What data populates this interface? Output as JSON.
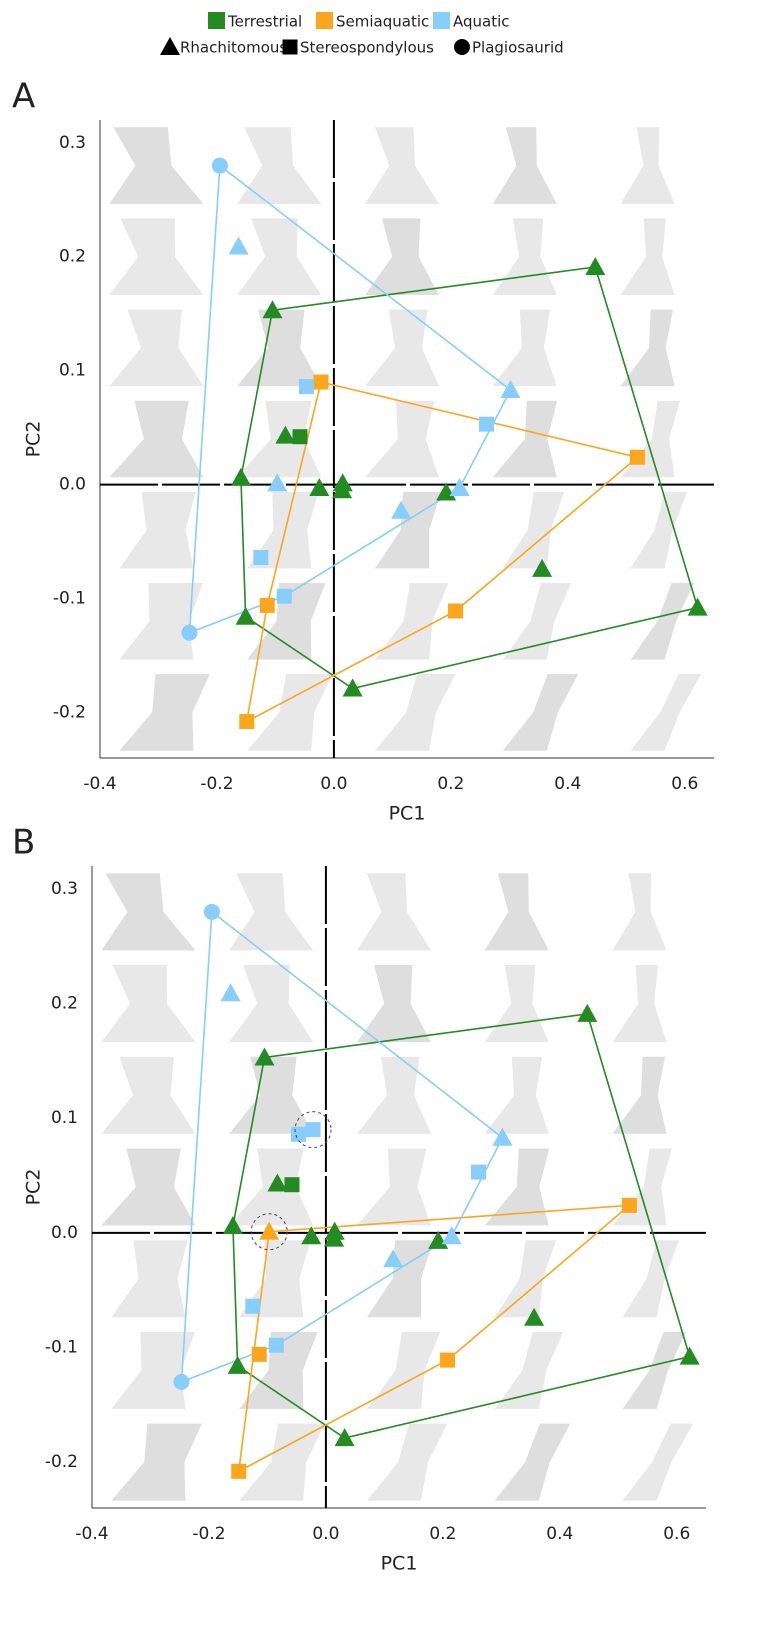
{
  "chart_data": [
    {
      "type": "scatter",
      "panel": "A",
      "xlabel": "PC1",
      "ylabel": "PC2",
      "xlim": [
        -0.4,
        0.65
      ],
      "ylim": [
        -0.24,
        0.32
      ],
      "xticks": [
        -0.4,
        -0.2,
        {
          "value": 0,
          "label": "0.0"
        },
        0.2,
        0.4,
        0.6
      ],
      "yticks": [
        -0.2,
        -0.1,
        {
          "value": 0,
          "label": "0.0"
        },
        0.1,
        0.2,
        0.3
      ],
      "zero_lines": true,
      "marker_legend": [
        {
          "name": "Rhachitomous",
          "marker": "triangle"
        },
        {
          "name": "Stereospondylous",
          "marker": "square"
        },
        {
          "name": "Plagiosaurid",
          "marker": "circle"
        }
      ],
      "series": [
        {
          "name": "Terrestrial",
          "color": "#238b22",
          "x": [
            0.447,
            -0.105,
            0.622,
            0.032,
            -0.151,
            -0.159,
            -0.083,
            -0.058,
            -0.025,
            0.015,
            0.014,
            0.192,
            0.356
          ],
          "y": [
            0.191,
            0.153,
            -0.108,
            -0.179,
            -0.116,
            0.006,
            0.043,
            0.042,
            -0.003,
            0.001,
            -0.005,
            -0.007,
            -0.074
          ],
          "marker": [
            "triangle",
            "triangle",
            "triangle",
            "triangle",
            "triangle",
            "triangle",
            "triangle",
            "square",
            "triangle",
            "triangle",
            "triangle",
            "triangle",
            "triangle"
          ]
        },
        {
          "name": "Semiaquatic",
          "color": "#fba61c",
          "x": [
            -0.022,
            0.519,
            0.208,
            -0.149,
            -0.114
          ],
          "y": [
            0.09,
            0.024,
            -0.111,
            -0.208,
            -0.106
          ],
          "marker": [
            "square",
            "square",
            "square",
            "square",
            "square"
          ]
        },
        {
          "name": "Aquatic",
          "color": "#87cefa",
          "x": [
            -0.195,
            -0.247,
            -0.163,
            0.302,
            -0.047,
            0.261,
            0.215,
            -0.097,
            0.115,
            -0.125,
            -0.085
          ],
          "y": [
            0.28,
            -0.13,
            0.209,
            0.083,
            0.086,
            0.053,
            -0.003,
            0.001,
            -0.023,
            -0.064,
            -0.098
          ],
          "marker": [
            "circle",
            "circle",
            "triangle",
            "triangle",
            "square",
            "square",
            "triangle",
            "triangle",
            "triangle",
            "square",
            "square"
          ]
        }
      ]
    },
    {
      "type": "scatter",
      "panel": "B",
      "xlabel": "PC1",
      "ylabel": "PC2",
      "xlim": [
        -0.4,
        0.65
      ],
      "ylim": [
        -0.24,
        0.32
      ],
      "xticks": [
        -0.4,
        -0.2,
        {
          "value": 0,
          "label": "0.0"
        },
        0.2,
        0.4,
        0.6
      ],
      "yticks": [
        -0.2,
        -0.1,
        {
          "value": 0,
          "label": "0.0"
        },
        0.1,
        0.2,
        0.3
      ],
      "zero_lines": true,
      "series": [
        {
          "color": "#238b22",
          "x": [
            0.447,
            -0.105,
            0.622,
            0.032,
            -0.151,
            -0.159,
            -0.083,
            -0.058,
            -0.025,
            0.015,
            0.014,
            0.192,
            0.356
          ],
          "y": [
            0.191,
            0.153,
            -0.108,
            -0.179,
            -0.116,
            0.006,
            0.043,
            0.042,
            -0.003,
            0.001,
            -0.005,
            -0.007,
            -0.074
          ],
          "marker": [
            "triangle",
            "triangle",
            "triangle",
            "triangle",
            "triangle",
            "triangle",
            "triangle",
            "square",
            "triangle",
            "triangle",
            "triangle",
            "triangle",
            "triangle"
          ]
        },
        {
          "color": "#fba61c",
          "x": [
            0.519,
            0.208,
            -0.149,
            -0.114,
            -0.097
          ],
          "y": [
            0.024,
            -0.111,
            -0.208,
            -0.106,
            0.001
          ],
          "marker": [
            "square",
            "square",
            "square",
            "square",
            "triangle"
          ],
          "circled": [
            false,
            false,
            false,
            false,
            true
          ]
        },
        {
          "color": "#87cefa",
          "x": [
            -0.195,
            -0.247,
            -0.163,
            0.302,
            -0.047,
            -0.022,
            0.261,
            0.215,
            0.115,
            -0.125,
            -0.085
          ],
          "y": [
            0.28,
            -0.13,
            0.209,
            0.083,
            0.086,
            0.09,
            0.053,
            -0.003,
            -0.023,
            -0.064,
            -0.098
          ],
          "marker": [
            "circle",
            "circle",
            "triangle",
            "triangle",
            "square",
            "square",
            "square",
            "triangle",
            "triangle",
            "square",
            "square"
          ],
          "circled": [
            false,
            false,
            false,
            false,
            false,
            true,
            false,
            false,
            false,
            false,
            false
          ]
        }
      ]
    }
  ]
}
